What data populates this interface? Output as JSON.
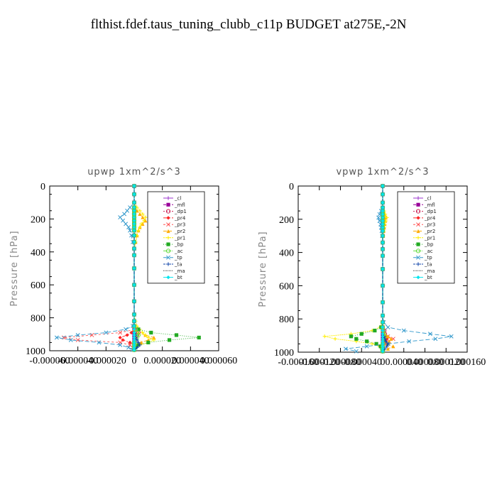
{
  "title": "flthist.fdef.taus_tuning_clubb_c11p  BUDGET at275E,-2N",
  "chart_data": [
    {
      "type": "line",
      "title": "upwp   1xm^2/s^3",
      "ylabel": "Pressure [hPa]",
      "xlim": [
        -6e-05,
        6e-05
      ],
      "ylim": [
        1000,
        0
      ],
      "y_reversed": true,
      "xtick_labels": [
        "-0.000060",
        "-0.000040",
        "-0.000020",
        "0",
        "0.000020",
        "0.000040",
        "0.000060"
      ],
      "ytick_labels": [
        "0",
        "200",
        "400",
        "600",
        "800",
        "1000"
      ],
      "xtick_values": [
        -6e-05,
        -4e-05,
        -2e-05,
        0,
        2e-05,
        4e-05,
        6e-05
      ],
      "ytick_values": [
        0,
        200,
        400,
        600,
        800,
        1000
      ],
      "pressure_levels": [
        0,
        50,
        100,
        130,
        150,
        170,
        190,
        210,
        230,
        250,
        270,
        300,
        340,
        380,
        420,
        500,
        600,
        700,
        780,
        820,
        850,
        870,
        890,
        905,
        920,
        935,
        950,
        965,
        980,
        995
      ],
      "series": [
        {
          "name": "_cl",
          "color": "#9933cc",
          "values": [
            0,
            0,
            0,
            0,
            0,
            0,
            0,
            0,
            0,
            0,
            0,
            0,
            0,
            0,
            0,
            0,
            0,
            0,
            0,
            0,
            0,
            0,
            0,
            0,
            0,
            0,
            0,
            0,
            0,
            0
          ]
        },
        {
          "name": "_mfl",
          "color": "#990099",
          "values": [
            0,
            0,
            0,
            0,
            0,
            0,
            0,
            0,
            0,
            0,
            0,
            0,
            0,
            0,
            0,
            0,
            0,
            0,
            0,
            0,
            0,
            0,
            0,
            0,
            0,
            0,
            0,
            0,
            0,
            0
          ]
        },
        {
          "name": "_dp1",
          "color": "#cc2255",
          "values": [
            0,
            0,
            0,
            0,
            0,
            0,
            0,
            0,
            0,
            0,
            0,
            0,
            0,
            0,
            0,
            0,
            0,
            0,
            0,
            0,
            0,
            2e-06,
            3e-06,
            2e-06,
            1e-06,
            1e-06,
            0,
            0,
            0,
            0
          ]
        },
        {
          "name": "_pr4",
          "color": "#ff2222",
          "values": [
            0,
            0,
            0,
            0,
            0,
            0,
            0,
            0,
            0,
            0,
            0,
            0,
            0,
            0,
            0,
            0,
            0,
            0,
            0,
            0,
            0,
            0,
            -2e-06,
            -5e-06,
            -1e-05,
            -8e-06,
            -3e-06,
            0,
            0,
            0
          ]
        },
        {
          "name": "_pr3",
          "color": "#ff5555",
          "values": [
            0,
            0,
            0,
            0,
            0,
            0,
            0,
            0,
            0,
            0,
            0,
            0,
            0,
            0,
            0,
            0,
            0,
            0,
            0,
            0,
            0,
            1e-06,
            -1e-05,
            -3e-05,
            -5e-05,
            -4e-05,
            -1e-05,
            -3e-06,
            -1e-06,
            0
          ]
        },
        {
          "name": "_pr2",
          "color": "#ffaa00",
          "values": [
            0,
            0,
            0,
            0,
            2e-06,
            4e-06,
            6e-06,
            8e-06,
            6e-06,
            4e-06,
            3e-06,
            2e-06,
            1e-06,
            0,
            0,
            0,
            0,
            0,
            0,
            0,
            0,
            0,
            3e-06,
            8e-06,
            1.4e-05,
            1e-05,
            5e-06,
            2e-06,
            1e-06,
            0
          ]
        },
        {
          "name": "_pr1",
          "color": "#ffee00",
          "values": [
            0,
            0,
            0,
            2e-06,
            4e-06,
            6e-06,
            8e-06,
            7e-06,
            5e-06,
            4e-06,
            3e-06,
            2e-06,
            1e-06,
            0,
            0,
            0,
            0,
            0,
            0,
            1e-06,
            2e-06,
            4e-06,
            6e-06,
            8e-06,
            1e-05,
            1.4e-05,
            1e-05,
            4e-06,
            1e-06,
            0
          ]
        },
        {
          "name": "_bp",
          "color": "#22aa22",
          "values": [
            0,
            0,
            0,
            0,
            0,
            0,
            0,
            0,
            0,
            0,
            0,
            0,
            0,
            0,
            0,
            0,
            0,
            0,
            0,
            0,
            0,
            3e-06,
            1.2e-05,
            3e-05,
            4.6e-05,
            2.5e-05,
            1e-05,
            3e-06,
            1e-06,
            0
          ]
        },
        {
          "name": "_ac",
          "color": "#66dd44",
          "values": [
            0,
            0,
            0,
            0,
            0,
            0,
            0,
            0,
            0,
            0,
            0,
            0,
            0,
            0,
            0,
            0,
            0,
            0,
            0,
            0,
            0,
            1e-06,
            2e-06,
            3e-06,
            2e-06,
            1e-06,
            0,
            0,
            0,
            0
          ]
        },
        {
          "name": "_tp",
          "color": "#3399cc",
          "values": [
            0,
            0,
            0,
            -3e-06,
            -5e-06,
            -7e-06,
            -1e-05,
            -8e-06,
            -6e-06,
            -4e-06,
            -3e-06,
            -2e-06,
            -1e-06,
            0,
            0,
            0,
            0,
            0,
            0,
            0,
            -1e-06,
            -6e-06,
            -2e-05,
            -4e-05,
            -5.5e-05,
            -4.5e-05,
            -2.5e-05,
            -1e-05,
            -4e-06,
            -1e-06
          ]
        },
        {
          "name": "_ta",
          "color": "#1144aa",
          "values": [
            0,
            0,
            0,
            0,
            0,
            0,
            0,
            0,
            0,
            0,
            0,
            0,
            0,
            0,
            0,
            0,
            0,
            0,
            0,
            0,
            0,
            0,
            0,
            1e-06,
            1e-06,
            2e-06,
            3e-06,
            4e-06,
            2e-06,
            0
          ]
        },
        {
          "name": "_ma",
          "color": "#333333",
          "values": [
            0,
            0,
            0,
            0,
            0,
            0,
            0,
            0,
            0,
            0,
            0,
            0,
            0,
            0,
            0,
            0,
            0,
            0,
            0,
            0,
            0,
            0,
            0,
            0,
            0,
            0,
            0,
            0,
            0,
            0
          ]
        },
        {
          "name": "_bt",
          "color": "#00e5ee",
          "values": [
            0,
            0,
            0,
            0,
            0,
            0,
            0,
            0,
            0,
            0,
            0,
            0,
            0,
            0,
            0,
            0,
            0,
            0,
            0,
            0,
            0,
            0,
            0,
            0,
            0,
            0,
            0,
            0,
            0,
            0
          ]
        }
      ]
    },
    {
      "type": "line",
      "title": "vpwp   1xm^2/s^3",
      "ylabel": "Pressure [hPa]",
      "xlim": [
        -0.00016,
        0.00016
      ],
      "ylim": [
        1000,
        0
      ],
      "y_reversed": true,
      "xtick_labels": [
        "-0.000160",
        "-0.000120",
        "-0.000080",
        "-0.000040",
        "0",
        "0.000040",
        "0.000080",
        "0.000120",
        "0.000160"
      ],
      "ytick_labels": [
        "0",
        "200",
        "400",
        "600",
        "800",
        "1000"
      ],
      "xtick_values": [
        -0.00016,
        -0.00012,
        -8e-05,
        -4e-05,
        0,
        4e-05,
        8e-05,
        0.00012,
        0.00016
      ],
      "ytick_values": [
        0,
        200,
        400,
        600,
        800,
        1000
      ],
      "pressure_levels": [
        0,
        50,
        100,
        130,
        150,
        170,
        190,
        210,
        230,
        250,
        270,
        300,
        340,
        380,
        420,
        500,
        600,
        700,
        780,
        820,
        850,
        870,
        890,
        905,
        920,
        935,
        950,
        965,
        980,
        995
      ],
      "series": [
        {
          "name": "_cl",
          "color": "#9933cc",
          "values": [
            0,
            0,
            0,
            0,
            0,
            0,
            0,
            0,
            0,
            0,
            0,
            0,
            0,
            0,
            0,
            0,
            0,
            0,
            0,
            0,
            0,
            0,
            0,
            0,
            0,
            0,
            0,
            0,
            0,
            0
          ]
        },
        {
          "name": "_mfl",
          "color": "#990099",
          "values": [
            0,
            0,
            0,
            0,
            0,
            0,
            0,
            0,
            0,
            0,
            0,
            0,
            0,
            0,
            0,
            0,
            0,
            0,
            0,
            0,
            0,
            0,
            0,
            0,
            0,
            0,
            0,
            0,
            0,
            0
          ]
        },
        {
          "name": "_dp1",
          "color": "#cc2255",
          "values": [
            0,
            0,
            0,
            0,
            0,
            0,
            0,
            0,
            0,
            0,
            0,
            0,
            0,
            0,
            0,
            0,
            0,
            0,
            0,
            0,
            0,
            3e-06,
            4e-06,
            3e-06,
            2e-06,
            1e-06,
            0,
            0,
            0,
            0
          ]
        },
        {
          "name": "_pr4",
          "color": "#ff2222",
          "values": [
            0,
            0,
            0,
            0,
            0,
            0,
            0,
            0,
            0,
            0,
            0,
            0,
            0,
            0,
            0,
            0,
            0,
            0,
            0,
            0,
            0,
            0,
            2e-06,
            5e-06,
            8e-06,
            6e-06,
            3e-06,
            0,
            0,
            0
          ]
        },
        {
          "name": "_pr3",
          "color": "#ff5555",
          "values": [
            0,
            0,
            0,
            0,
            0,
            0,
            0,
            0,
            0,
            0,
            0,
            0,
            0,
            0,
            0,
            0,
            0,
            0,
            0,
            0,
            0,
            0,
            3e-06,
            1e-05,
            2e-05,
            1.2e-05,
            4e-06,
            1e-06,
            0,
            0
          ]
        },
        {
          "name": "_pr2",
          "color": "#ffaa00",
          "values": [
            0,
            0,
            0,
            0,
            2e-06,
            4e-06,
            6e-06,
            5e-06,
            4e-06,
            3e-06,
            2e-06,
            1e-06,
            0,
            0,
            0,
            0,
            0,
            0,
            0,
            0,
            0,
            0,
            4e-06,
            1e-05,
            1.6e-05,
            1.2e-05,
            8e-06,
            2e-05,
            1e-05,
            0
          ]
        },
        {
          "name": "_pr1",
          "color": "#ffee00",
          "values": [
            0,
            0,
            0,
            0,
            3e-06,
            5e-06,
            8e-06,
            6e-06,
            4e-06,
            3e-06,
            2e-06,
            1e-06,
            0,
            0,
            0,
            0,
            0,
            0,
            0,
            0,
            -5e-06,
            -2e-05,
            -6e-05,
            -0.00011,
            -9e-05,
            -5e-05,
            -2e-05,
            -6e-06,
            -2e-06,
            0
          ]
        },
        {
          "name": "_bp",
          "color": "#22aa22",
          "values": [
            0,
            0,
            0,
            0,
            0,
            0,
            0,
            0,
            0,
            0,
            0,
            0,
            0,
            0,
            0,
            0,
            0,
            0,
            0,
            0,
            -3e-06,
            -1.5e-05,
            -4e-05,
            -6e-05,
            -5e-05,
            -3e-05,
            -1.2e-05,
            -4e-06,
            -1e-06,
            0
          ]
        },
        {
          "name": "_ac",
          "color": "#66dd44",
          "values": [
            0,
            0,
            0,
            0,
            0,
            0,
            0,
            0,
            0,
            0,
            0,
            0,
            0,
            0,
            0,
            0,
            0,
            0,
            0,
            0,
            0,
            1e-06,
            2e-06,
            3e-06,
            2e-06,
            1e-06,
            0,
            0,
            0,
            0
          ]
        },
        {
          "name": "_tp",
          "color": "#3399cc",
          "values": [
            0,
            0,
            0,
            0,
            -3e-06,
            -6e-06,
            -8e-06,
            -6e-06,
            -4e-06,
            -3e-06,
            -2e-06,
            -1e-06,
            0,
            0,
            0,
            0,
            0,
            0,
            0,
            2e-06,
            1e-05,
            4e-05,
            9e-05,
            0.00013,
            0.0001,
            5e-05,
            1e-05,
            -3e-05,
            -7e-05,
            -5e-05
          ]
        },
        {
          "name": "_ta",
          "color": "#1144aa",
          "values": [
            0,
            0,
            0,
            0,
            0,
            0,
            0,
            0,
            0,
            0,
            0,
            0,
            0,
            0,
            0,
            0,
            0,
            0,
            0,
            0,
            0,
            0,
            0,
            2e-06,
            4e-06,
            6e-06,
            1e-05,
            8e-06,
            4e-06,
            0
          ]
        },
        {
          "name": "_ma",
          "color": "#333333",
          "values": [
            0,
            0,
            0,
            0,
            0,
            0,
            0,
            0,
            0,
            0,
            0,
            0,
            0,
            0,
            0,
            0,
            0,
            0,
            0,
            0,
            0,
            0,
            0,
            0,
            0,
            0,
            0,
            0,
            0,
            0
          ]
        },
        {
          "name": "_bt",
          "color": "#00e5ee",
          "values": [
            0,
            0,
            0,
            0,
            0,
            0,
            0,
            0,
            0,
            0,
            0,
            0,
            0,
            0,
            0,
            0,
            0,
            0,
            0,
            0,
            0,
            0,
            0,
            0,
            0,
            0,
            0,
            0,
            0,
            0
          ]
        }
      ]
    }
  ]
}
